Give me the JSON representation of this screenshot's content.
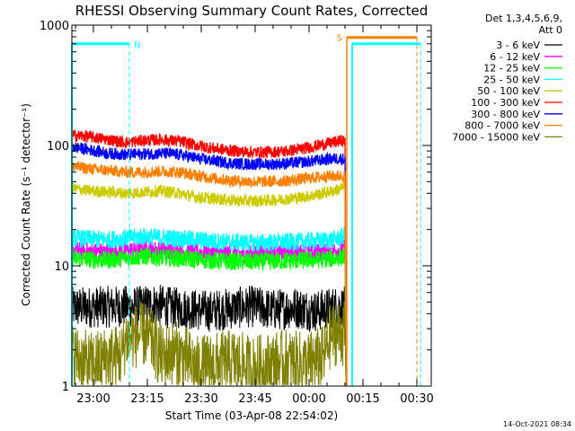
{
  "chart_data": {
    "type": "line",
    "title": "RHESSI Observing Summary Count Rates, Corrected",
    "xlabel": "Start Time (03-Apr-08 22:54:02)",
    "ylabel": "Corrected Count Rate (s⁻¹ detector⁻¹)",
    "yscale": "log",
    "ylim": [
      1,
      1000
    ],
    "x_unit": "minutes after 22:54:02",
    "xlim": [
      0,
      100
    ],
    "x_ticks": [
      {
        "value": 6,
        "label": "23:00"
      },
      {
        "value": 21,
        "label": "23:15"
      },
      {
        "value": 36,
        "label": "23:30"
      },
      {
        "value": 51,
        "label": "23:45"
      },
      {
        "value": 66,
        "label": "00:00"
      },
      {
        "value": 81,
        "label": "00:15"
      },
      {
        "value": 96,
        "label": "00:30"
      }
    ],
    "y_ticks": [
      {
        "value": 1,
        "label": "1"
      },
      {
        "value": 10,
        "label": "10"
      },
      {
        "value": 100,
        "label": "100"
      },
      {
        "value": 1000,
        "label": "1000"
      }
    ],
    "legend_header": [
      "Det 1,3,4,5,6,9,",
      "Att 0"
    ],
    "legend_position": "right",
    "data_end_x": 76,
    "series": [
      {
        "name": "3 - 6 keV",
        "color": "#000000",
        "x": [
          0,
          15,
          17,
          23,
          27,
          32,
          38,
          44,
          50,
          56,
          62,
          68,
          71,
          74,
          76
        ],
        "y": [
          4.5,
          4.6,
          4.5,
          4.8,
          4.5,
          4.4,
          4.2,
          4.4,
          4.6,
          4.3,
          4.5,
          4.2,
          4.4,
          4.6,
          4.5
        ]
      },
      {
        "name": "6 - 12 keV",
        "color": "#ff00ff",
        "x": [
          0,
          10,
          20,
          30,
          40,
          50,
          60,
          70,
          74,
          76
        ],
        "y": [
          13.5,
          13.0,
          13.8,
          13.2,
          12.8,
          12.5,
          12.7,
          13.0,
          13.5,
          14.0
        ]
      },
      {
        "name": "12 - 25 keV",
        "color": "#00ff00",
        "x": [
          0,
          10,
          20,
          30,
          40,
          50,
          60,
          70,
          74,
          76
        ],
        "y": [
          11.5,
          11.2,
          12.0,
          11.5,
          11.0,
          10.8,
          11.0,
          11.3,
          11.6,
          12.0
        ]
      },
      {
        "name": "25 - 50 keV",
        "color": "#00ffff",
        "x": [
          0,
          10,
          20,
          30,
          40,
          50,
          60,
          70,
          74,
          76
        ],
        "y": [
          17.0,
          16.5,
          17.5,
          16.8,
          16.0,
          15.5,
          15.8,
          16.2,
          16.8,
          18.0
        ]
      },
      {
        "name": "50 - 100 keV",
        "color": "#cccc00",
        "x": [
          0,
          5,
          10,
          15,
          20,
          25,
          30,
          35,
          40,
          45,
          50,
          55,
          60,
          65,
          70,
          74,
          76
        ],
        "y": [
          44,
          42,
          41,
          40,
          41,
          42,
          40,
          37,
          36,
          35,
          34.5,
          35,
          36,
          37.5,
          40,
          43,
          46
        ]
      },
      {
        "name": "100 - 300 keV",
        "color": "#ff0000",
        "x": [
          0,
          5,
          10,
          15,
          20,
          25,
          30,
          35,
          40,
          45,
          50,
          55,
          60,
          65,
          70,
          74,
          76
        ],
        "y": [
          122,
          118,
          112,
          106,
          110,
          112,
          108,
          100,
          94,
          90,
          88,
          88,
          90,
          95,
          102,
          108,
          110
        ]
      },
      {
        "name": "300 - 800 keV",
        "color": "#0000ff",
        "x": [
          0,
          5,
          10,
          15,
          20,
          25,
          30,
          35,
          40,
          45,
          50,
          55,
          60,
          65,
          70,
          74,
          76
        ],
        "y": [
          97,
          92,
          86,
          84,
          85,
          86,
          84,
          78,
          74,
          71,
          70,
          70,
          71,
          73,
          76,
          78,
          77
        ]
      },
      {
        "name": "800 - 7000 keV",
        "color": "#ff8000",
        "x": [
          0,
          5,
          10,
          15,
          20,
          25,
          30,
          35,
          40,
          45,
          50,
          55,
          60,
          65,
          70,
          74,
          76
        ],
        "y": [
          67,
          64,
          62,
          60,
          60,
          61,
          60,
          56,
          53,
          51,
          50,
          50,
          51,
          53,
          55,
          56,
          56
        ]
      },
      {
        "name": "7000 - 15000 keV",
        "color": "#808000",
        "x": [
          0,
          5,
          10,
          14,
          15,
          20,
          22,
          25,
          28,
          30,
          35,
          40,
          45,
          50,
          55,
          60,
          65,
          70,
          72,
          74,
          76
        ],
        "y": [
          1.8,
          1.5,
          1.7,
          1.8,
          2.5,
          2.7,
          2.4,
          1.7,
          1.9,
          1.8,
          1.4,
          1.5,
          1.6,
          1.4,
          1.5,
          1.6,
          1.5,
          1.7,
          2.6,
          2.8,
          2.7
        ]
      }
    ],
    "annotations": [
      {
        "type": "night",
        "label": "N",
        "color": "#00ffff",
        "x_start": 0,
        "x_end": 16,
        "y_level": 700
      },
      {
        "type": "saa",
        "label": "S",
        "color": "#ff8000",
        "x_start": 76.5,
        "x_end": 96,
        "y_level": 790
      },
      {
        "type": "night",
        "label": "",
        "color": "#00ffff",
        "x_start": 78,
        "x_end": 97,
        "y_level": 700
      }
    ]
  },
  "footer": {
    "timestamp": "14-Oct-2021 08:34"
  }
}
